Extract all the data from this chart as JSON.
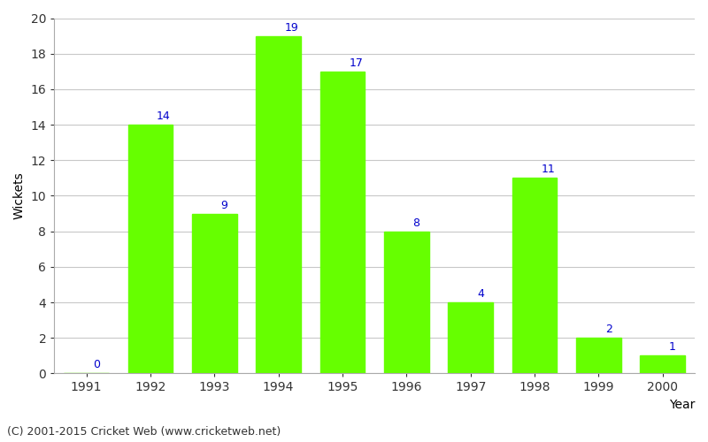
{
  "years": [
    "1991",
    "1992",
    "1993",
    "1994",
    "1995",
    "1996",
    "1997",
    "1998",
    "1999",
    "2000"
  ],
  "wickets": [
    0,
    14,
    9,
    19,
    17,
    8,
    4,
    11,
    2,
    1
  ],
  "bar_color": "#66ff00",
  "bar_edgecolor": "#66ff00",
  "label_color": "#0000cc",
  "xlabel": "Year",
  "ylabel": "Wickets",
  "ylim": [
    0,
    20
  ],
  "yticks": [
    0,
    2,
    4,
    6,
    8,
    10,
    12,
    14,
    16,
    18,
    20
  ],
  "label_fontsize": 9,
  "axis_fontsize": 10,
  "footer": "(C) 2001-2015 Cricket Web (www.cricketweb.net)",
  "footer_fontsize": 9,
  "background_color": "#ffffff",
  "grid_color": "#c8c8c8"
}
